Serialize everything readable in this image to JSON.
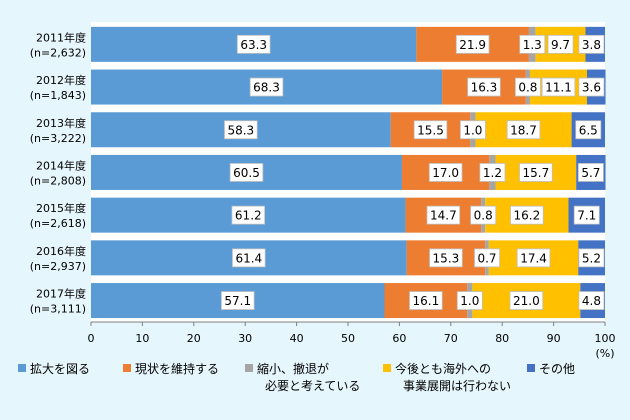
{
  "chart_data": {
    "type": "bar",
    "orientation": "horizontal",
    "stacked": true,
    "categories": [
      {
        "year": "2011年度",
        "n": "(n=2,632)"
      },
      {
        "year": "2012年度",
        "n": "(n=1,843)"
      },
      {
        "year": "2013年度",
        "n": "(n=3,222)"
      },
      {
        "year": "2014年度",
        "n": "(n=2,808)"
      },
      {
        "year": "2015年度",
        "n": "(n=2,618)"
      },
      {
        "year": "2016年度",
        "n": "(n=2,937)"
      },
      {
        "year": "2017年度",
        "n": "(n=3,111)"
      }
    ],
    "series": [
      {
        "name": "拡大を図る",
        "color": "#5b9bd5",
        "values": [
          63.3,
          68.3,
          58.3,
          60.5,
          61.2,
          61.4,
          57.1
        ],
        "labels": [
          "63.3",
          "68.3",
          "58.3",
          "60.5",
          "61.2",
          "61.4",
          "57.1"
        ]
      },
      {
        "name": "現状を維持する",
        "color": "#ed7d31",
        "values": [
          21.9,
          16.3,
          15.5,
          17.0,
          14.7,
          15.3,
          16.1
        ],
        "labels": [
          "21.9",
          "16.3",
          "15.5",
          "17.0",
          "14.7",
          "15.3",
          "16.1"
        ]
      },
      {
        "name": "縮小、撤退が\n必要と考えている",
        "color": "#a5a5a5",
        "values": [
          1.3,
          0.8,
          1.0,
          1.2,
          0.8,
          0.7,
          1.0
        ],
        "labels": [
          "1.3",
          "0.8",
          "1.0",
          "1.2",
          "0.8",
          "0.7",
          "1.0"
        ]
      },
      {
        "name": "今後とも海外への\n事業展開は行わない",
        "color": "#ffc000",
        "values": [
          9.7,
          11.1,
          18.7,
          15.7,
          16.2,
          17.4,
          21.0
        ],
        "labels": [
          "9.7",
          "11.1",
          "18.7",
          "15.7",
          "16.2",
          "17.4",
          "21.0"
        ]
      },
      {
        "name": "その他",
        "color": "#4472c4",
        "values": [
          3.8,
          3.6,
          6.5,
          5.7,
          7.1,
          5.2,
          4.8
        ],
        "labels": [
          "3.8",
          "3.6",
          "6.5",
          "5.7",
          "7.1",
          "5.2",
          "4.8"
        ]
      }
    ],
    "x_ticks": [
      "0",
      "10",
      "20",
      "30",
      "40",
      "50",
      "60",
      "70",
      "80",
      "90",
      "100"
    ],
    "x_unit": "(%)",
    "xlim": [
      0,
      100
    ],
    "grid": false,
    "legend_position": "bottom"
  }
}
